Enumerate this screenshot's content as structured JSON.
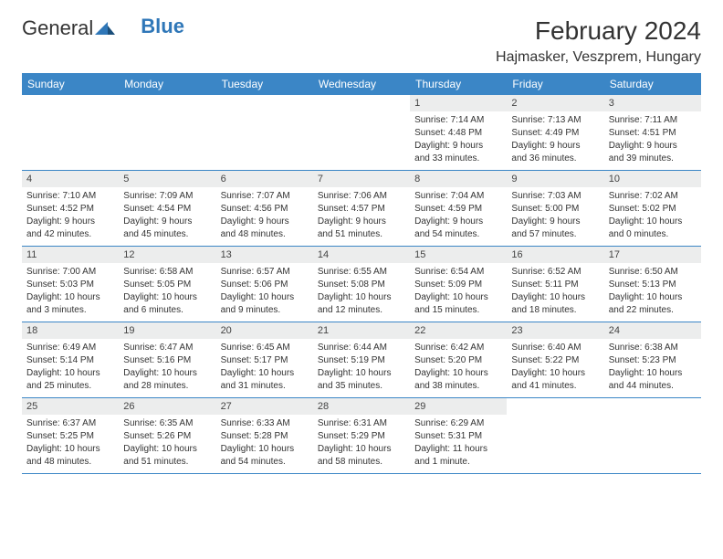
{
  "logo": {
    "part1": "General",
    "part2": "Blue"
  },
  "title": "February 2024",
  "location": "Hajmasker, Veszprem, Hungary",
  "colors": {
    "header_bg": "#3b86c6",
    "daynum_bg": "#eceded",
    "row_border": "#3b86c6",
    "text": "#333333",
    "logo_blue": "#2f77b8"
  },
  "weekdays": [
    "Sunday",
    "Monday",
    "Tuesday",
    "Wednesday",
    "Thursday",
    "Friday",
    "Saturday"
  ],
  "weeks": [
    [
      {
        "empty": true
      },
      {
        "empty": true
      },
      {
        "empty": true
      },
      {
        "empty": true
      },
      {
        "n": "1",
        "sr": "Sunrise: 7:14 AM",
        "ss": "Sunset: 4:48 PM",
        "d1": "Daylight: 9 hours",
        "d2": "and 33 minutes."
      },
      {
        "n": "2",
        "sr": "Sunrise: 7:13 AM",
        "ss": "Sunset: 4:49 PM",
        "d1": "Daylight: 9 hours",
        "d2": "and 36 minutes."
      },
      {
        "n": "3",
        "sr": "Sunrise: 7:11 AM",
        "ss": "Sunset: 4:51 PM",
        "d1": "Daylight: 9 hours",
        "d2": "and 39 minutes."
      }
    ],
    [
      {
        "n": "4",
        "sr": "Sunrise: 7:10 AM",
        "ss": "Sunset: 4:52 PM",
        "d1": "Daylight: 9 hours",
        "d2": "and 42 minutes."
      },
      {
        "n": "5",
        "sr": "Sunrise: 7:09 AM",
        "ss": "Sunset: 4:54 PM",
        "d1": "Daylight: 9 hours",
        "d2": "and 45 minutes."
      },
      {
        "n": "6",
        "sr": "Sunrise: 7:07 AM",
        "ss": "Sunset: 4:56 PM",
        "d1": "Daylight: 9 hours",
        "d2": "and 48 minutes."
      },
      {
        "n": "7",
        "sr": "Sunrise: 7:06 AM",
        "ss": "Sunset: 4:57 PM",
        "d1": "Daylight: 9 hours",
        "d2": "and 51 minutes."
      },
      {
        "n": "8",
        "sr": "Sunrise: 7:04 AM",
        "ss": "Sunset: 4:59 PM",
        "d1": "Daylight: 9 hours",
        "d2": "and 54 minutes."
      },
      {
        "n": "9",
        "sr": "Sunrise: 7:03 AM",
        "ss": "Sunset: 5:00 PM",
        "d1": "Daylight: 9 hours",
        "d2": "and 57 minutes."
      },
      {
        "n": "10",
        "sr": "Sunrise: 7:02 AM",
        "ss": "Sunset: 5:02 PM",
        "d1": "Daylight: 10 hours",
        "d2": "and 0 minutes."
      }
    ],
    [
      {
        "n": "11",
        "sr": "Sunrise: 7:00 AM",
        "ss": "Sunset: 5:03 PM",
        "d1": "Daylight: 10 hours",
        "d2": "and 3 minutes."
      },
      {
        "n": "12",
        "sr": "Sunrise: 6:58 AM",
        "ss": "Sunset: 5:05 PM",
        "d1": "Daylight: 10 hours",
        "d2": "and 6 minutes."
      },
      {
        "n": "13",
        "sr": "Sunrise: 6:57 AM",
        "ss": "Sunset: 5:06 PM",
        "d1": "Daylight: 10 hours",
        "d2": "and 9 minutes."
      },
      {
        "n": "14",
        "sr": "Sunrise: 6:55 AM",
        "ss": "Sunset: 5:08 PM",
        "d1": "Daylight: 10 hours",
        "d2": "and 12 minutes."
      },
      {
        "n": "15",
        "sr": "Sunrise: 6:54 AM",
        "ss": "Sunset: 5:09 PM",
        "d1": "Daylight: 10 hours",
        "d2": "and 15 minutes."
      },
      {
        "n": "16",
        "sr": "Sunrise: 6:52 AM",
        "ss": "Sunset: 5:11 PM",
        "d1": "Daylight: 10 hours",
        "d2": "and 18 minutes."
      },
      {
        "n": "17",
        "sr": "Sunrise: 6:50 AM",
        "ss": "Sunset: 5:13 PM",
        "d1": "Daylight: 10 hours",
        "d2": "and 22 minutes."
      }
    ],
    [
      {
        "n": "18",
        "sr": "Sunrise: 6:49 AM",
        "ss": "Sunset: 5:14 PM",
        "d1": "Daylight: 10 hours",
        "d2": "and 25 minutes."
      },
      {
        "n": "19",
        "sr": "Sunrise: 6:47 AM",
        "ss": "Sunset: 5:16 PM",
        "d1": "Daylight: 10 hours",
        "d2": "and 28 minutes."
      },
      {
        "n": "20",
        "sr": "Sunrise: 6:45 AM",
        "ss": "Sunset: 5:17 PM",
        "d1": "Daylight: 10 hours",
        "d2": "and 31 minutes."
      },
      {
        "n": "21",
        "sr": "Sunrise: 6:44 AM",
        "ss": "Sunset: 5:19 PM",
        "d1": "Daylight: 10 hours",
        "d2": "and 35 minutes."
      },
      {
        "n": "22",
        "sr": "Sunrise: 6:42 AM",
        "ss": "Sunset: 5:20 PM",
        "d1": "Daylight: 10 hours",
        "d2": "and 38 minutes."
      },
      {
        "n": "23",
        "sr": "Sunrise: 6:40 AM",
        "ss": "Sunset: 5:22 PM",
        "d1": "Daylight: 10 hours",
        "d2": "and 41 minutes."
      },
      {
        "n": "24",
        "sr": "Sunrise: 6:38 AM",
        "ss": "Sunset: 5:23 PM",
        "d1": "Daylight: 10 hours",
        "d2": "and 44 minutes."
      }
    ],
    [
      {
        "n": "25",
        "sr": "Sunrise: 6:37 AM",
        "ss": "Sunset: 5:25 PM",
        "d1": "Daylight: 10 hours",
        "d2": "and 48 minutes."
      },
      {
        "n": "26",
        "sr": "Sunrise: 6:35 AM",
        "ss": "Sunset: 5:26 PM",
        "d1": "Daylight: 10 hours",
        "d2": "and 51 minutes."
      },
      {
        "n": "27",
        "sr": "Sunrise: 6:33 AM",
        "ss": "Sunset: 5:28 PM",
        "d1": "Daylight: 10 hours",
        "d2": "and 54 minutes."
      },
      {
        "n": "28",
        "sr": "Sunrise: 6:31 AM",
        "ss": "Sunset: 5:29 PM",
        "d1": "Daylight: 10 hours",
        "d2": "and 58 minutes."
      },
      {
        "n": "29",
        "sr": "Sunrise: 6:29 AM",
        "ss": "Sunset: 5:31 PM",
        "d1": "Daylight: 11 hours",
        "d2": "and 1 minute."
      },
      {
        "empty": true
      },
      {
        "empty": true
      }
    ]
  ]
}
